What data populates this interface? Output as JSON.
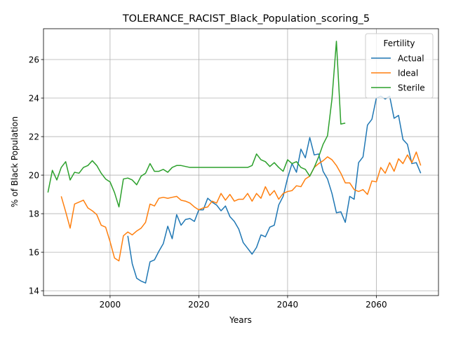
{
  "chart_data": {
    "type": "line",
    "title": "TOLERANCE_RACIST_Black_Population_scoring_5",
    "xlabel": "Years",
    "ylabel": "% of Black Population",
    "xlim": [
      1985,
      2074
    ],
    "ylim": [
      13.75,
      27.6
    ],
    "x_ticks": [
      2000,
      2020,
      2040,
      2060
    ],
    "y_ticks": [
      14,
      16,
      18,
      20,
      22,
      24,
      26
    ],
    "grid": true,
    "legend": {
      "title": "Fertility",
      "placement": "top-right"
    },
    "series": [
      {
        "name": "Actual",
        "color": "#1f77b4",
        "points": [
          [
            2004,
            16.85
          ],
          [
            2005,
            15.4
          ],
          [
            2006,
            14.65
          ],
          [
            2007,
            14.5
          ],
          [
            2008,
            14.4
          ],
          [
            2009,
            15.5
          ],
          [
            2010,
            15.6
          ],
          [
            2011,
            16.05
          ],
          [
            2012,
            16.45
          ],
          [
            2013,
            17.35
          ],
          [
            2014,
            16.7
          ],
          [
            2015,
            17.95
          ],
          [
            2016,
            17.4
          ],
          [
            2017,
            17.7
          ],
          [
            2018,
            17.75
          ],
          [
            2019,
            17.6
          ],
          [
            2020,
            18.2
          ],
          [
            2021,
            18.2
          ],
          [
            2022,
            18.8
          ],
          [
            2023,
            18.6
          ],
          [
            2024,
            18.45
          ],
          [
            2025,
            18.15
          ],
          [
            2026,
            18.4
          ],
          [
            2027,
            17.85
          ],
          [
            2028,
            17.6
          ],
          [
            2029,
            17.2
          ],
          [
            2030,
            16.5
          ],
          [
            2031,
            16.2
          ],
          [
            2032,
            15.9
          ],
          [
            2033,
            16.25
          ],
          [
            2034,
            16.9
          ],
          [
            2035,
            16.8
          ],
          [
            2036,
            17.3
          ],
          [
            2037,
            17.4
          ],
          [
            2038,
            18.45
          ],
          [
            2039,
            18.9
          ],
          [
            2040,
            19.85
          ],
          [
            2041,
            20.6
          ],
          [
            2042,
            20.15
          ],
          [
            2043,
            21.35
          ],
          [
            2044,
            20.9
          ],
          [
            2045,
            21.95
          ],
          [
            2046,
            21.05
          ],
          [
            2047,
            21.1
          ],
          [
            2048,
            20.2
          ],
          [
            2049,
            19.8
          ],
          [
            2050,
            19.05
          ],
          [
            2051,
            18.05
          ],
          [
            2052,
            18.1
          ],
          [
            2053,
            17.55
          ],
          [
            2054,
            18.9
          ],
          [
            2055,
            18.75
          ],
          [
            2056,
            20.65
          ],
          [
            2057,
            20.95
          ],
          [
            2058,
            22.6
          ],
          [
            2059,
            22.9
          ],
          [
            2060,
            24.0
          ],
          [
            2061,
            24.1
          ],
          [
            2062,
            23.95
          ],
          [
            2063,
            24.1
          ],
          [
            2064,
            22.95
          ],
          [
            2065,
            23.1
          ],
          [
            2066,
            21.85
          ],
          [
            2067,
            21.6
          ],
          [
            2068,
            20.6
          ],
          [
            2069,
            20.65
          ],
          [
            2070,
            20.1
          ]
        ]
      },
      {
        "name": "Ideal",
        "color": "#ff7f0e",
        "points": [
          [
            1989,
            18.9
          ],
          [
            1990,
            18.1
          ],
          [
            1991,
            17.25
          ],
          [
            1992,
            18.5
          ],
          [
            1993,
            18.6
          ],
          [
            1994,
            18.7
          ],
          [
            1995,
            18.3
          ],
          [
            1996,
            18.15
          ],
          [
            1997,
            17.95
          ],
          [
            1998,
            17.4
          ],
          [
            1999,
            17.3
          ],
          [
            2000,
            16.55
          ],
          [
            2001,
            15.7
          ],
          [
            2002,
            15.55
          ],
          [
            2003,
            16.85
          ],
          [
            2004,
            17.05
          ],
          [
            2005,
            16.9
          ],
          [
            2006,
            17.1
          ],
          [
            2007,
            17.25
          ],
          [
            2008,
            17.55
          ],
          [
            2009,
            18.5
          ],
          [
            2010,
            18.4
          ],
          [
            2011,
            18.8
          ],
          [
            2012,
            18.85
          ],
          [
            2013,
            18.8
          ],
          [
            2014,
            18.85
          ],
          [
            2015,
            18.9
          ],
          [
            2016,
            18.7
          ],
          [
            2017,
            18.65
          ],
          [
            2018,
            18.55
          ],
          [
            2019,
            18.35
          ],
          [
            2020,
            18.2
          ],
          [
            2021,
            18.3
          ],
          [
            2022,
            18.35
          ],
          [
            2023,
            18.65
          ],
          [
            2024,
            18.55
          ],
          [
            2025,
            19.05
          ],
          [
            2026,
            18.7
          ],
          [
            2027,
            19.0
          ],
          [
            2028,
            18.65
          ],
          [
            2029,
            18.75
          ],
          [
            2030,
            18.75
          ],
          [
            2031,
            19.05
          ],
          [
            2032,
            18.65
          ],
          [
            2033,
            19.05
          ],
          [
            2034,
            18.8
          ],
          [
            2035,
            19.4
          ],
          [
            2036,
            18.95
          ],
          [
            2037,
            19.2
          ],
          [
            2038,
            18.75
          ],
          [
            2039,
            19.05
          ],
          [
            2040,
            19.15
          ],
          [
            2041,
            19.2
          ],
          [
            2042,
            19.45
          ],
          [
            2043,
            19.4
          ],
          [
            2044,
            19.8
          ],
          [
            2045,
            19.95
          ],
          [
            2046,
            20.4
          ],
          [
            2047,
            20.6
          ],
          [
            2048,
            20.75
          ],
          [
            2049,
            20.95
          ],
          [
            2050,
            20.8
          ],
          [
            2051,
            20.5
          ],
          [
            2052,
            20.1
          ],
          [
            2053,
            19.6
          ],
          [
            2054,
            19.6
          ],
          [
            2055,
            19.25
          ],
          [
            2056,
            19.15
          ],
          [
            2057,
            19.25
          ],
          [
            2058,
            19.0
          ],
          [
            2059,
            19.7
          ],
          [
            2060,
            19.65
          ],
          [
            2061,
            20.4
          ],
          [
            2062,
            20.1
          ],
          [
            2063,
            20.65
          ],
          [
            2064,
            20.2
          ],
          [
            2065,
            20.85
          ],
          [
            2066,
            20.6
          ],
          [
            2067,
            21.05
          ],
          [
            2068,
            20.65
          ],
          [
            2069,
            21.2
          ],
          [
            2070,
            20.5
          ]
        ]
      },
      {
        "name": "Sterile",
        "color": "#2ca02c",
        "points": [
          [
            1986,
            19.1
          ],
          [
            1987,
            20.25
          ],
          [
            1988,
            19.75
          ],
          [
            1989,
            20.4
          ],
          [
            1990,
            20.7
          ],
          [
            1991,
            19.75
          ],
          [
            1992,
            20.15
          ],
          [
            1993,
            20.1
          ],
          [
            1994,
            20.4
          ],
          [
            1995,
            20.5
          ],
          [
            1996,
            20.75
          ],
          [
            1997,
            20.5
          ],
          [
            1998,
            20.1
          ],
          [
            1999,
            19.8
          ],
          [
            2000,
            19.65
          ],
          [
            2001,
            19.1
          ],
          [
            2002,
            18.35
          ],
          [
            2003,
            19.8
          ],
          [
            2004,
            19.85
          ],
          [
            2005,
            19.75
          ],
          [
            2006,
            19.5
          ],
          [
            2007,
            19.95
          ],
          [
            2008,
            20.1
          ],
          [
            2009,
            20.6
          ],
          [
            2010,
            20.2
          ],
          [
            2011,
            20.2
          ],
          [
            2012,
            20.3
          ],
          [
            2013,
            20.15
          ],
          [
            2014,
            20.4
          ],
          [
            2015,
            20.5
          ],
          [
            2016,
            20.5
          ],
          [
            2017,
            20.45
          ],
          [
            2018,
            20.4
          ],
          [
            2019,
            20.4
          ],
          [
            2020,
            20.4
          ],
          [
            2021,
            20.4
          ],
          [
            2022,
            20.4
          ],
          [
            2023,
            20.4
          ],
          [
            2024,
            20.4
          ],
          [
            2025,
            20.4
          ],
          [
            2026,
            20.4
          ],
          [
            2027,
            20.4
          ],
          [
            2028,
            20.4
          ],
          [
            2029,
            20.4
          ],
          [
            2030,
            20.4
          ],
          [
            2031,
            20.4
          ],
          [
            2032,
            20.5
          ],
          [
            2033,
            21.1
          ],
          [
            2034,
            20.8
          ],
          [
            2035,
            20.7
          ],
          [
            2036,
            20.45
          ],
          [
            2037,
            20.65
          ],
          [
            2038,
            20.4
          ],
          [
            2039,
            20.2
          ],
          [
            2040,
            20.8
          ],
          [
            2041,
            20.6
          ],
          [
            2042,
            20.7
          ],
          [
            2043,
            20.4
          ],
          [
            2044,
            20.3
          ],
          [
            2045,
            19.95
          ],
          [
            2046,
            20.4
          ],
          [
            2047,
            20.95
          ],
          [
            2048,
            21.6
          ],
          [
            2049,
            22.05
          ],
          [
            2050,
            23.95
          ],
          [
            2051,
            26.95
          ],
          [
            2052,
            22.65
          ],
          [
            2053,
            22.7
          ]
        ]
      }
    ]
  }
}
